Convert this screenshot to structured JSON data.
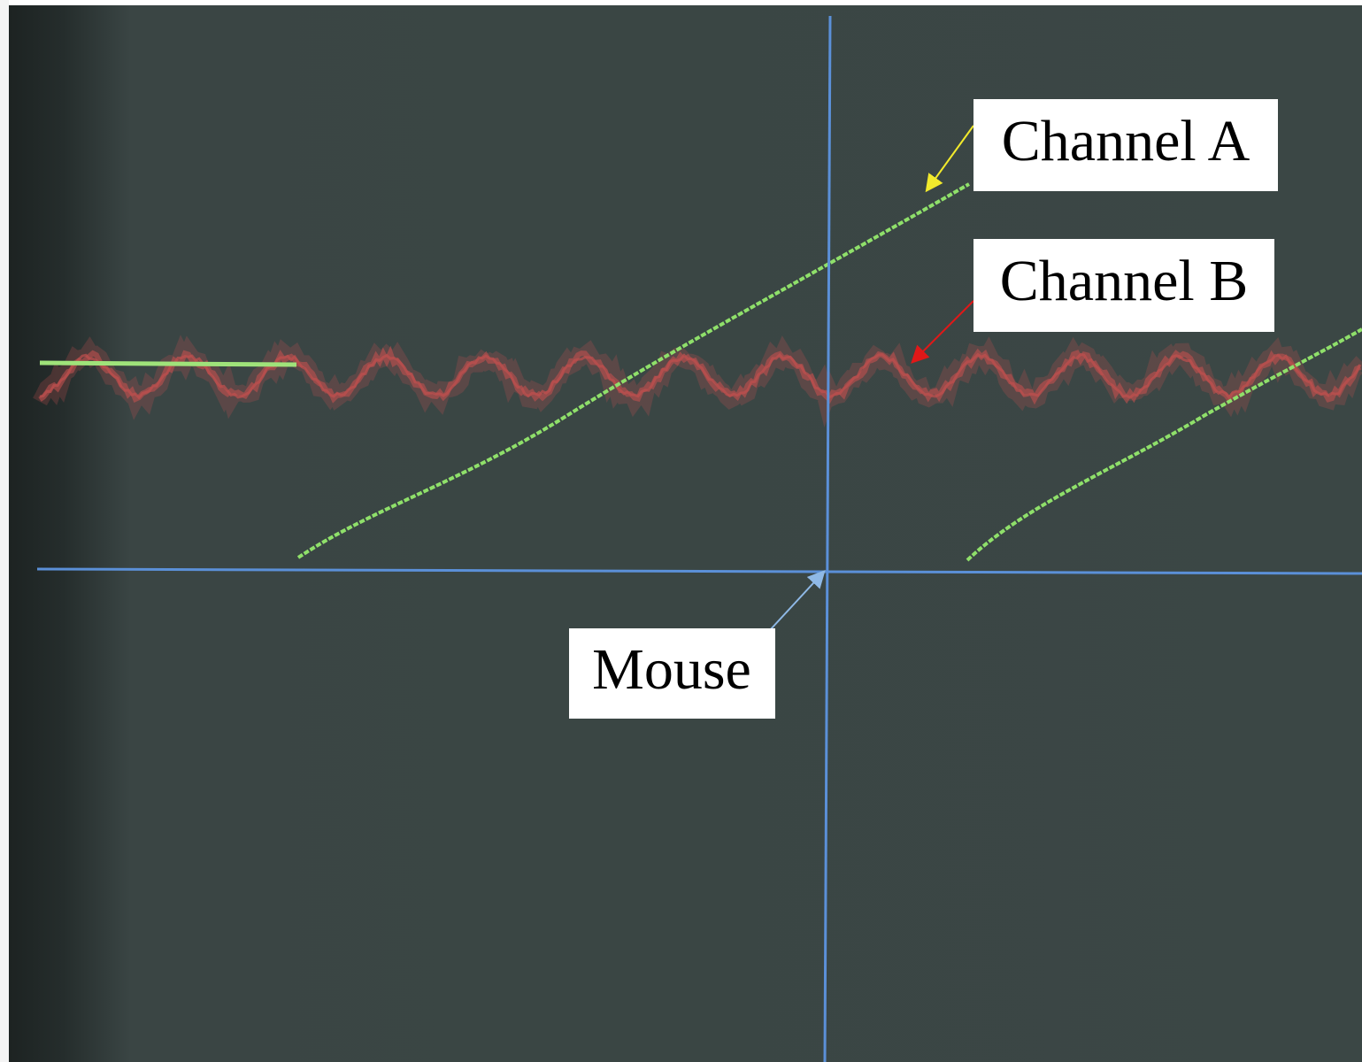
{
  "labels": {
    "channel_a": "Channel A",
    "channel_b": "Channel B",
    "mouse": "Mouse"
  }
}
